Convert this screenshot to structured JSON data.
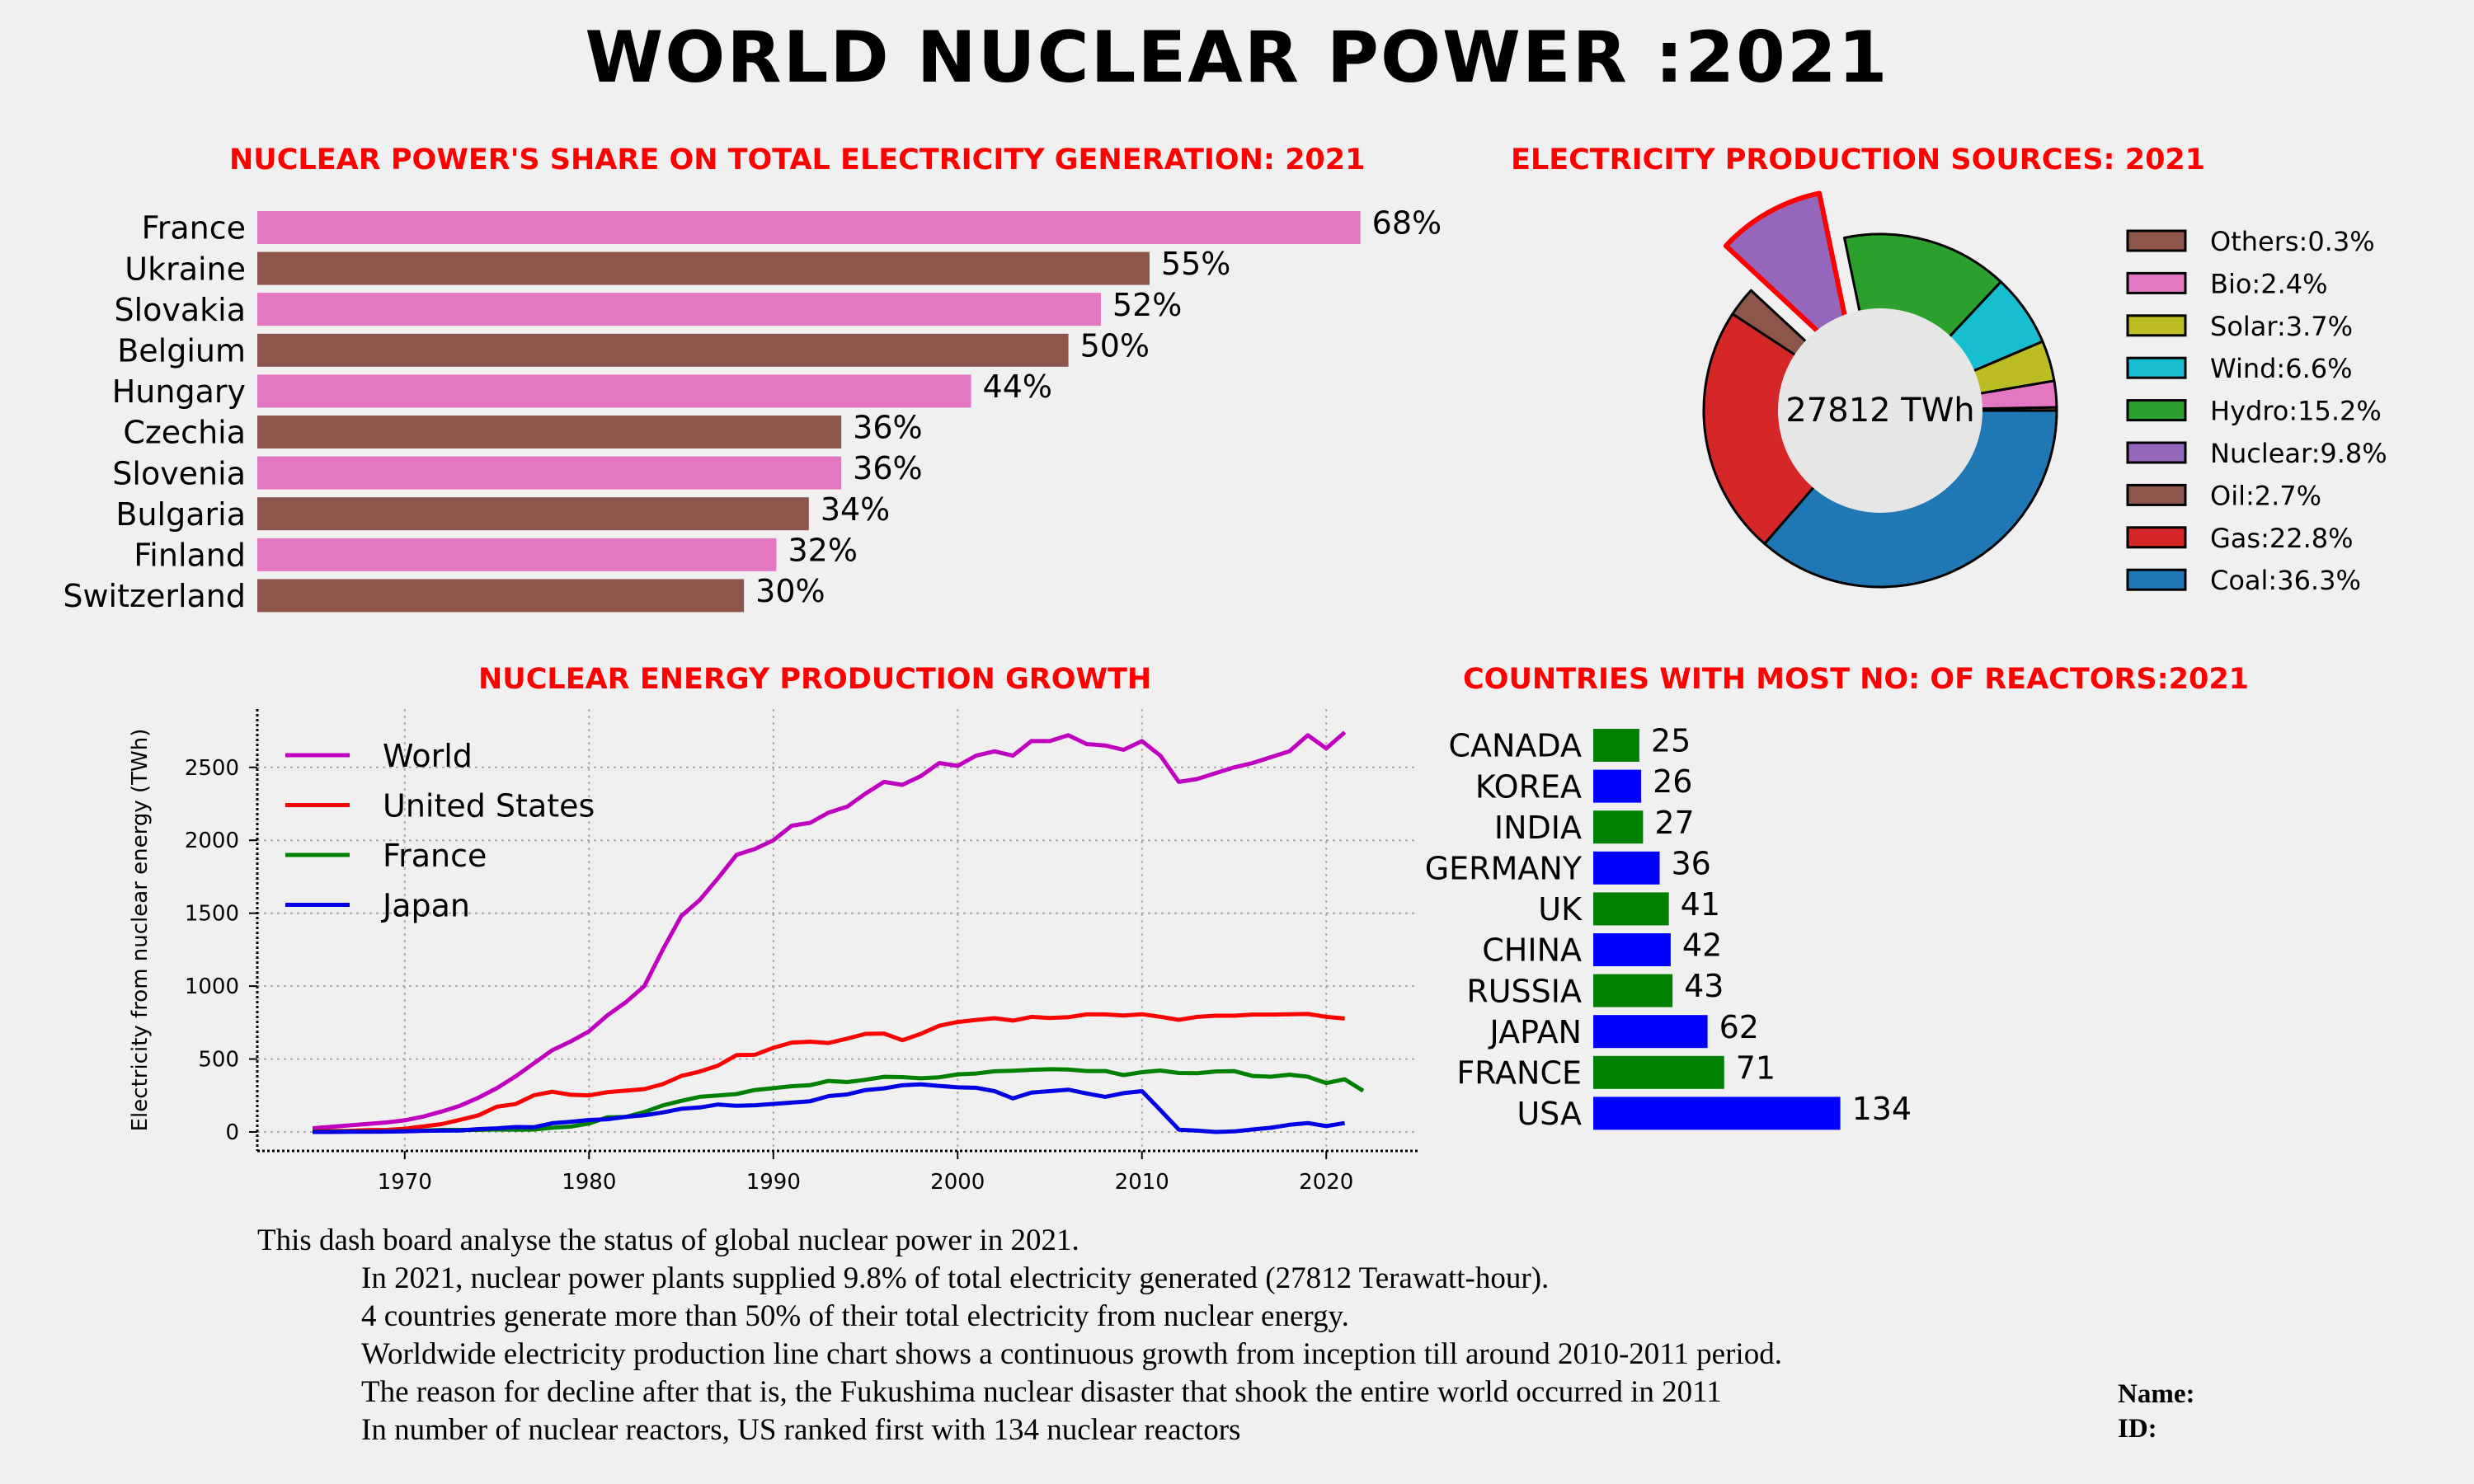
{
  "page": {
    "title": "WORLD NUCLEAR POWER :2021"
  },
  "chart_data": [
    {
      "id": "share",
      "type": "bar",
      "orientation": "horizontal",
      "title": "NUCLEAR POWER'S SHARE ON TOTAL ELECTRICITY GENERATION: 2021",
      "categories": [
        "France",
        "Ukraine",
        "Slovakia",
        "Belgium",
        "Hungary",
        "Czechia",
        "Slovenia",
        "Bulgaria",
        "Finland",
        "Switzerland"
      ],
      "values": [
        68,
        55,
        52,
        50,
        44,
        36,
        36,
        34,
        32,
        30
      ],
      "labels": [
        "68%",
        "55%",
        "52%",
        "50%",
        "44%",
        "36%",
        "36%",
        "34%",
        "32%",
        "30%"
      ],
      "colors": [
        "#e377c2",
        "#8c564b"
      ],
      "xlim": [
        0,
        70
      ]
    },
    {
      "id": "sources",
      "type": "pie",
      "style": "donut",
      "title": "ELECTRICITY PRODUCTION SOURCES: 2021",
      "center_label": "27812 TWh",
      "slices": [
        {
          "label": "Others:0.3%",
          "value": 0.3,
          "color": "#8c564b"
        },
        {
          "label": "Bio:2.4%",
          "value": 2.4,
          "color": "#e377c2"
        },
        {
          "label": "Solar:3.7%",
          "value": 3.7,
          "color": "#bcbd22"
        },
        {
          "label": "Wind:6.6%",
          "value": 6.6,
          "color": "#17becf"
        },
        {
          "label": "Hydro:15.2%",
          "value": 15.2,
          "color": "#2ca02c"
        },
        {
          "label": "Nuclear:9.8%",
          "value": 9.8,
          "color": "#9467bd",
          "exploded": true
        },
        {
          "label": "Oil:2.7%",
          "value": 2.7,
          "color": "#8c564b"
        },
        {
          "label": "Gas:22.8%",
          "value": 22.8,
          "color": "#d62728"
        },
        {
          "label": "Coal:36.3%",
          "value": 36.3,
          "color": "#1f77b4"
        }
      ],
      "legend_position": "right"
    },
    {
      "id": "growth",
      "type": "line",
      "title": "NUCLEAR ENERGY PRODUCTION GROWTH",
      "ylabel": "Electricity from nuclear energy (TWh)",
      "xlabel": "",
      "xlim": [
        1962,
        2025
      ],
      "ylim": [
        -130,
        2900
      ],
      "xticks": [
        1970,
        1980,
        1990,
        2000,
        2010,
        2020
      ],
      "yticks": [
        0,
        500,
        1000,
        1500,
        2000,
        2500
      ],
      "grid": true,
      "legend_position": "top-left",
      "series": [
        {
          "name": "World",
          "color": "#bf00bf",
          "x": [
            1965,
            1966,
            1967,
            1968,
            1969,
            1970,
            1971,
            1972,
            1973,
            1974,
            1975,
            1976,
            1977,
            1978,
            1979,
            1980,
            1981,
            1982,
            1983,
            1984,
            1985,
            1986,
            1987,
            1988,
            1989,
            1990,
            1991,
            1992,
            1993,
            1994,
            1995,
            1996,
            1997,
            1998,
            1999,
            2000,
            2001,
            2002,
            2003,
            2004,
            2005,
            2006,
            2007,
            2008,
            2009,
            2010,
            2011,
            2012,
            2013,
            2014,
            2015,
            2016,
            2017,
            2018,
            2019,
            2020,
            2021
          ],
          "y": [
            25,
            35,
            45,
            55,
            65,
            80,
            105,
            140,
            180,
            235,
            300,
            380,
            470,
            560,
            620,
            690,
            800,
            890,
            1000,
            1250,
            1480,
            1590,
            1740,
            1900,
            1940,
            2000,
            2100,
            2120,
            2190,
            2230,
            2320,
            2400,
            2380,
            2440,
            2530,
            2510,
            2580,
            2610,
            2580,
            2680,
            2680,
            2720,
            2660,
            2650,
            2620,
            2680,
            2580,
            2400,
            2420,
            2460,
            2500,
            2530,
            2570,
            2610,
            2720,
            2630,
            2740
          ]
        },
        {
          "name": " United States",
          "color": "#ff0000",
          "x": [
            1965,
            1966,
            1967,
            1968,
            1969,
            1970,
            1971,
            1972,
            1973,
            1974,
            1975,
            1976,
            1977,
            1978,
            1979,
            1980,
            1981,
            1982,
            1983,
            1984,
            1985,
            1986,
            1987,
            1988,
            1989,
            1990,
            1991,
            1992,
            1993,
            1994,
            1995,
            1996,
            1997,
            1998,
            1999,
            2000,
            2001,
            2002,
            2003,
            2004,
            2005,
            2006,
            2007,
            2008,
            2009,
            2010,
            2011,
            2012,
            2013,
            2014,
            2015,
            2016,
            2017,
            2018,
            2019,
            2020,
            2021
          ],
          "y": [
            4,
            6,
            8,
            13,
            14,
            22,
            38,
            54,
            83,
            114,
            173,
            191,
            251,
            276,
            255,
            251,
            273,
            283,
            294,
            328,
            384,
            414,
            455,
            527,
            529,
            577,
            613,
            619,
            610,
            640,
            673,
            675,
            629,
            673,
            728,
            754,
            768,
            780,
            764,
            789,
            782,
            787,
            806,
            806,
            799,
            807,
            790,
            769,
            789,
            797,
            797,
            805,
            805,
            807,
            809,
            789,
            778
          ]
        },
        {
          "name": "France",
          "color": "#008000",
          "x": [
            1965,
            1966,
            1967,
            1968,
            1969,
            1970,
            1971,
            1972,
            1973,
            1974,
            1975,
            1976,
            1977,
            1978,
            1979,
            1980,
            1981,
            1982,
            1983,
            1984,
            1985,
            1986,
            1987,
            1988,
            1989,
            1990,
            1991,
            1992,
            1993,
            1994,
            1995,
            1996,
            1997,
            1998,
            1999,
            2000,
            2001,
            2002,
            2003,
            2004,
            2005,
            2006,
            2007,
            2008,
            2009,
            2010,
            2011,
            2012,
            2013,
            2014,
            2015,
            2016,
            2017,
            2018,
            2019,
            2020,
            2021,
            2022
          ],
          "y": [
            1,
            2,
            3,
            3,
            4,
            5,
            9,
            14,
            14,
            14,
            17,
            15,
            17,
            29,
            37,
            58,
            100,
            103,
            137,
            182,
            213,
            241,
            250,
            260,
            288,
            300,
            314,
            321,
            350,
            342,
            358,
            378,
            376,
            368,
            375,
            395,
            401,
            416,
            420,
            426,
            430,
            428,
            418,
            418,
            390,
            410,
            421,
            404,
            403,
            415,
            417,
            384,
            379,
            393,
            379,
            335,
            361,
            282
          ]
        },
        {
          "name": "Japan",
          "color": "#0000e6",
          "x": [
            1965,
            1966,
            1967,
            1968,
            1969,
            1970,
            1971,
            1972,
            1973,
            1974,
            1975,
            1976,
            1977,
            1978,
            1979,
            1980,
            1981,
            1982,
            1983,
            1984,
            1985,
            1986,
            1987,
            1988,
            1989,
            1990,
            1991,
            1992,
            1993,
            1994,
            1995,
            1996,
            1997,
            1998,
            1999,
            2000,
            2001,
            2002,
            2003,
            2004,
            2005,
            2006,
            2007,
            2008,
            2009,
            2010,
            2011,
            2012,
            2013,
            2014,
            2015,
            2016,
            2017,
            2018,
            2019,
            2020,
            2021
          ],
          "y": [
            0,
            0,
            1,
            1,
            2,
            4,
            8,
            9,
            10,
            20,
            25,
            34,
            32,
            60,
            70,
            82,
            87,
            104,
            114,
            134,
            159,
            168,
            188,
            179,
            183,
            192,
            201,
            211,
            246,
            257,
            287,
            299,
            320,
            326,
            316,
            306,
            303,
            280,
            230,
            270,
            280,
            290,
            264,
            241,
            266,
            280,
            150,
            16,
            9,
            0,
            4,
            17,
            29,
            49,
            61,
            40,
            61
          ]
        }
      ]
    },
    {
      "id": "reactors",
      "type": "bar",
      "orientation": "horizontal",
      "title": "COUNTRIES WITH MOST NO: OF REACTORS:2021",
      "categories": [
        "CANADA",
        "KOREA",
        "INDIA",
        "GERMANY",
        "UK",
        "CHINA",
        "RUSSIA",
        "JAPAN",
        "FRANCE",
        "USA"
      ],
      "values": [
        25,
        26,
        27,
        36,
        41,
        42,
        43,
        62,
        71,
        134
      ],
      "labels": [
        "25",
        "26",
        "27",
        "36",
        "41",
        "42",
        "43",
        "62",
        "71",
        "134"
      ],
      "colors": [
        "#008000",
        "#0000ff"
      ],
      "xlim": [
        0,
        140
      ]
    }
  ],
  "summary": {
    "intro": "This dash board analyse the status of global nuclear power in 2021.",
    "lines": [
      "In 2021, nuclear power plants supplied 9.8% of total electricity generated (27812 Terawatt-hour).",
      "4 countries generate more than 50% of their total electricity from nuclear energy.",
      "Worldwide electricity production line chart shows a continuous growth from inception till around 2010-2011 period.",
      "The reason for decline after that is, the Fukushima nuclear disaster that shook the entire world occurred in 2011",
      "In number of nuclear reactors, US ranked first with 134 nuclear reactors"
    ]
  },
  "footer": {
    "name_label": "Name:",
    "id_label": "ID:"
  }
}
